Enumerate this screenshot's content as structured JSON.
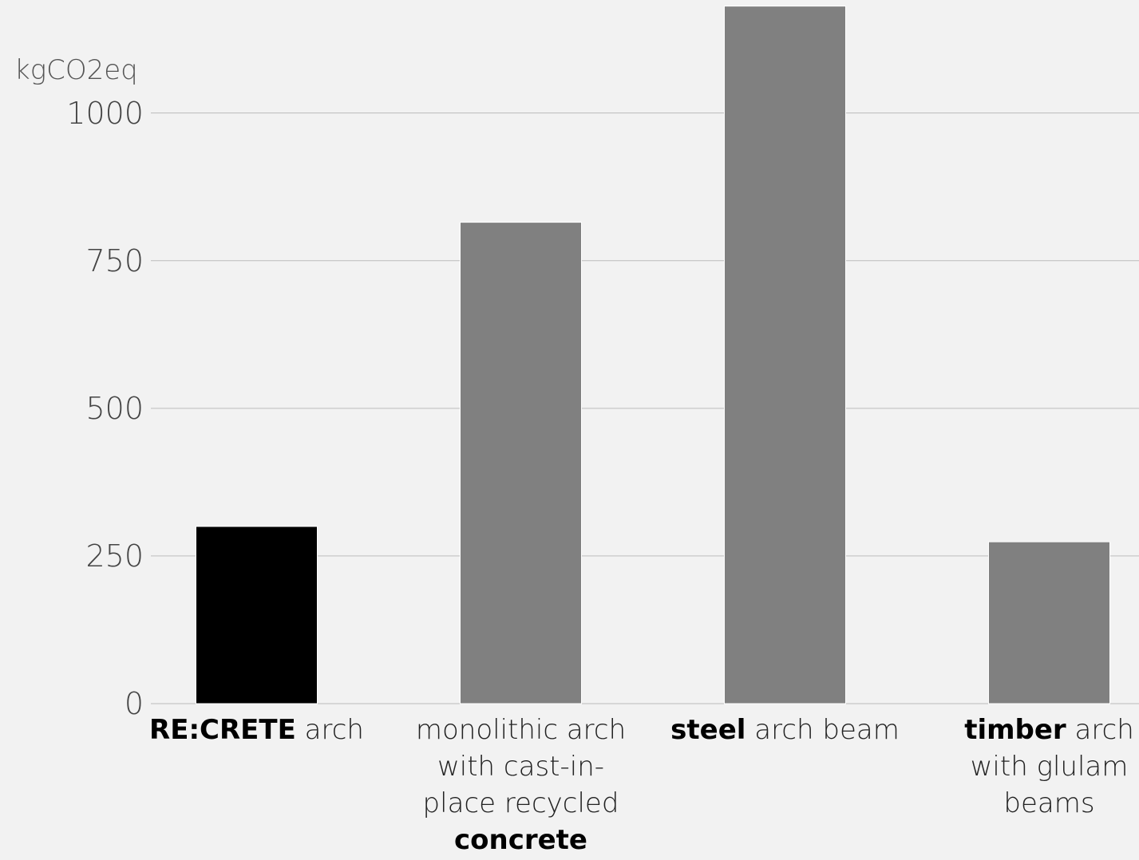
{
  "chart_data": {
    "type": "bar",
    "y_label": "kgCO2eq",
    "categories": [
      [
        {
          "text": "RE:CRETE",
          "bold": true
        },
        {
          "text": " arch"
        }
      ],
      [
        {
          "text": "monolithic arch with cast-in-place recycled "
        },
        {
          "text": "concrete",
          "bold": true
        }
      ],
      [
        {
          "text": "steel",
          "bold": true
        },
        {
          "text": " arch beam"
        }
      ],
      [
        {
          "text": "timber",
          "bold": true
        },
        {
          "text": " arch with glulam beams"
        }
      ]
    ],
    "values": [
      300,
      815,
      1181,
      274
    ],
    "colors": [
      "#000000",
      "#808080",
      "#808080",
      "#808080"
    ],
    "ylim": [
      0,
      1190
    ],
    "yticks": [
      0,
      250,
      500,
      750,
      1000
    ],
    "grid": true
  }
}
